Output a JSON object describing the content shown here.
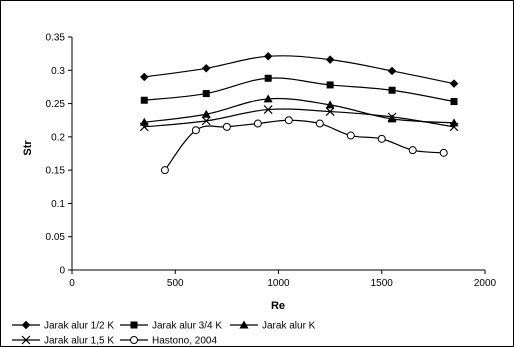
{
  "chart_data": {
    "type": "line",
    "xlabel": "Re",
    "ylabel": "Str",
    "xlim": [
      0,
      2000
    ],
    "ylim": [
      0,
      0.35
    ],
    "xticks": [
      0,
      500,
      1000,
      1500,
      2000
    ],
    "yticks": [
      0,
      0.05,
      0.1,
      0.15,
      0.2,
      0.25,
      0.3,
      0.35
    ],
    "legend_position": "bottom",
    "grid": false,
    "series": [
      {
        "name": "Jarak alur 1/2 K",
        "marker": "diamond",
        "x": [
          350,
          650,
          950,
          1250,
          1550,
          1850
        ],
        "y": [
          0.29,
          0.303,
          0.321,
          0.316,
          0.299,
          0.28
        ]
      },
      {
        "name": "Jarak alur 3/4 K",
        "marker": "square",
        "x": [
          350,
          650,
          950,
          1250,
          1550,
          1850
        ],
        "y": [
          0.255,
          0.265,
          0.288,
          0.278,
          0.27,
          0.253
        ]
      },
      {
        "name": "Jarak alur K",
        "marker": "triangle",
        "x": [
          350,
          650,
          950,
          1250,
          1550,
          1850
        ],
        "y": [
          0.222,
          0.234,
          0.257,
          0.248,
          0.227,
          0.221
        ]
      },
      {
        "name": "Jarak alur 1,5 K",
        "marker": "x",
        "x": [
          350,
          650,
          950,
          1250,
          1550,
          1850
        ],
        "y": [
          0.215,
          0.224,
          0.241,
          0.238,
          0.23,
          0.215
        ]
      },
      {
        "name": "Hastono, 2004",
        "marker": "circle",
        "x": [
          450,
          600,
          750,
          900,
          1050,
          1200,
          1350,
          1500,
          1650,
          1800
        ],
        "y": [
          0.15,
          0.21,
          0.215,
          0.22,
          0.225,
          0.22,
          0.202,
          0.197,
          0.18,
          0.176
        ]
      }
    ]
  }
}
